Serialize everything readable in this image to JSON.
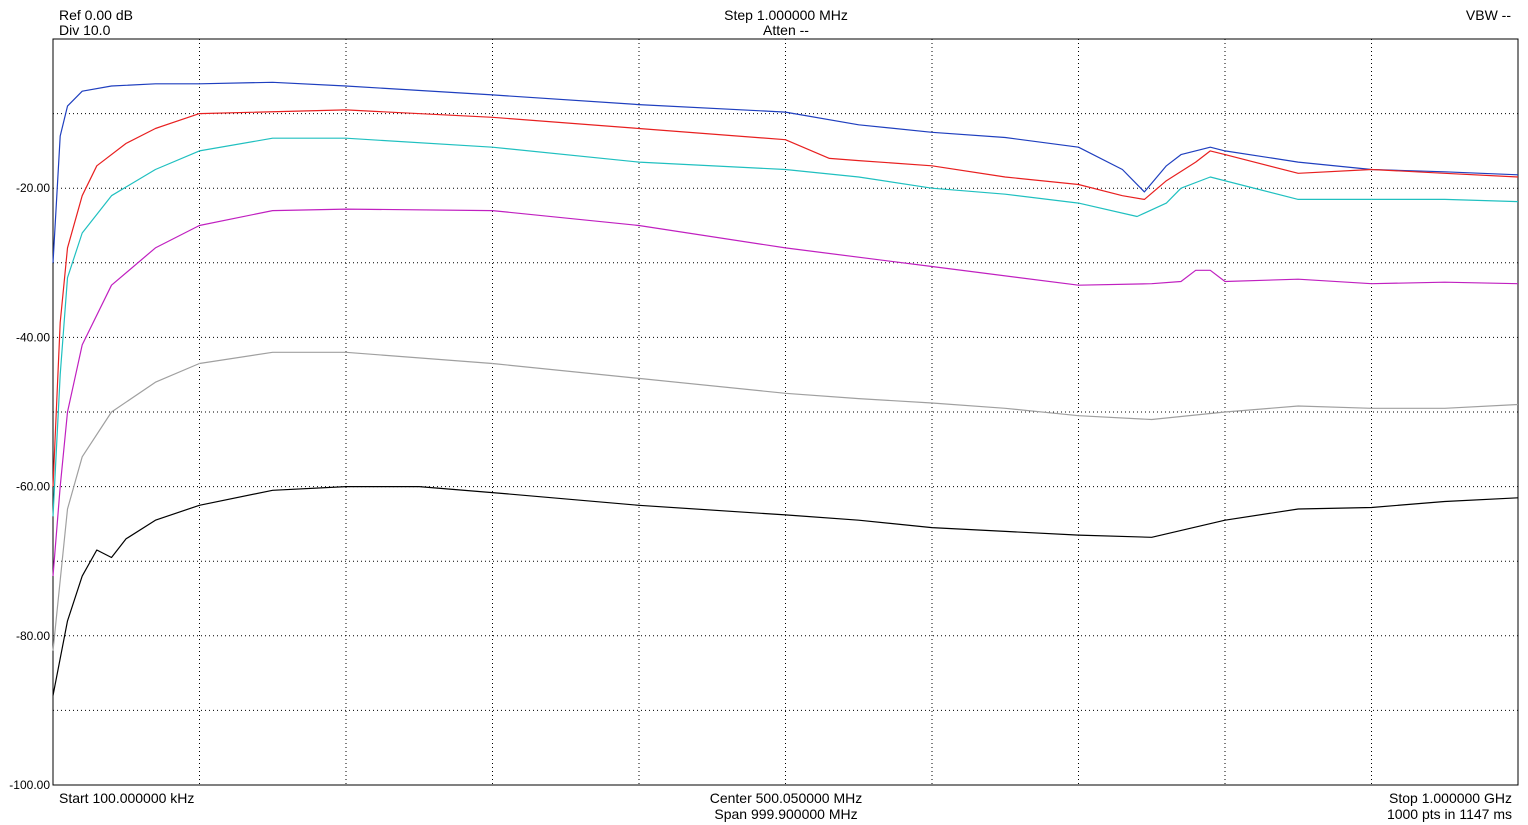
{
  "header": {
    "ref": "Ref 0.00 dB",
    "div": "Div 10.0",
    "step": "Step 1.000000 MHz",
    "atten": "Atten --",
    "vbw": "VBW --"
  },
  "footer": {
    "start": "Start 100.000000 kHz",
    "center": "Center 500.050000 MHz",
    "span": "Span 999.900000 MHz",
    "stop": "Stop 1.000000 GHz",
    "sweep": "1000 pts in 1147 ms"
  },
  "chart_data": {
    "type": "line",
    "xlabel": "",
    "ylabel": "",
    "xlim": [
      0.1,
      1000
    ],
    "ylim": [
      -100,
      0
    ],
    "x_unit": "MHz",
    "grid": true,
    "y_tick_labels": [
      "-20.00",
      "-40.00",
      "-60.00",
      "-80.00",
      "-100.00"
    ],
    "y_tick_values": [
      -20,
      -40,
      -60,
      -80,
      -100
    ],
    "series": [
      {
        "color": "#1f3fbf",
        "x": [
          0.1,
          5,
          10,
          20,
          40,
          70,
          100,
          150,
          200,
          300,
          400,
          500,
          550,
          600,
          650,
          700,
          730,
          745,
          760,
          770,
          790,
          800,
          850,
          900,
          950,
          1000
        ],
        "y": [
          -30,
          -13,
          -9,
          -7,
          -6.3,
          -6,
          -6,
          -5.8,
          -6.3,
          -7.5,
          -8.8,
          -9.8,
          -11.5,
          -12.5,
          -13.2,
          -14.5,
          -17.5,
          -20.5,
          -17,
          -15.5,
          -14.5,
          -15,
          -16.5,
          -17.5,
          -17.8,
          -18.2
        ]
      },
      {
        "color": "#e82020",
        "x": [
          0.1,
          5,
          10,
          20,
          30,
          50,
          70,
          100,
          200,
          300,
          400,
          500,
          530,
          550,
          600,
          650,
          700,
          730,
          745,
          760,
          780,
          790,
          800,
          850,
          900,
          950,
          1000
        ],
        "y": [
          -60,
          -38,
          -28,
          -21,
          -17,
          -14,
          -12,
          -10,
          -9.5,
          -10.5,
          -12,
          -13.5,
          -16,
          -16.3,
          -17,
          -18.5,
          -19.5,
          -21,
          -21.5,
          -19,
          -16.5,
          -15,
          -15.5,
          -18,
          -17.5,
          -18,
          -18.5
        ]
      },
      {
        "color": "#20c0c0",
        "x": [
          0.1,
          5,
          10,
          20,
          40,
          70,
          100,
          150,
          200,
          300,
          400,
          500,
          550,
          600,
          650,
          700,
          740,
          760,
          770,
          790,
          810,
          850,
          900,
          950,
          1000
        ],
        "y": [
          -64,
          -45,
          -32,
          -26,
          -21,
          -17.5,
          -15,
          -13.3,
          -13.3,
          -14.5,
          -16.5,
          -17.5,
          -18.5,
          -20,
          -20.8,
          -22,
          -23.8,
          -22,
          -20,
          -18.5,
          -19.5,
          -21.5,
          -21.5,
          -21.5,
          -21.8
        ]
      },
      {
        "color": "#c020c0",
        "x": [
          0.1,
          5,
          10,
          20,
          40,
          70,
          100,
          150,
          200,
          300,
          400,
          500,
          600,
          700,
          750,
          770,
          780,
          790,
          800,
          850,
          900,
          950,
          1000
        ],
        "y": [
          -72,
          -60,
          -50,
          -41,
          -33,
          -28,
          -25,
          -23,
          -22.8,
          -23,
          -25,
          -28,
          -30.5,
          -33,
          -32.8,
          -32.5,
          -31,
          -31,
          -32.5,
          -32.2,
          -32.8,
          -32.6,
          -32.8
        ]
      },
      {
        "color": "#a0a0a0",
        "x": [
          0.1,
          10,
          20,
          40,
          70,
          100,
          150,
          200,
          300,
          400,
          500,
          550,
          600,
          650,
          700,
          750,
          800,
          850,
          900,
          950,
          1000
        ],
        "y": [
          -82,
          -63,
          -56,
          -50,
          -46,
          -43.5,
          -42,
          -42,
          -43.5,
          -45.5,
          -47.5,
          -48.2,
          -48.8,
          -49.5,
          -50.5,
          -51,
          -50,
          -49.2,
          -49.5,
          -49.5,
          -49
        ]
      },
      {
        "color": "#000000",
        "x": [
          0.1,
          10,
          20,
          30,
          40,
          50,
          70,
          100,
          150,
          200,
          250,
          300,
          400,
          500,
          550,
          600,
          650,
          700,
          750,
          800,
          850,
          900,
          950,
          1000
        ],
        "y": [
          -88,
          -78,
          -72,
          -68.5,
          -69.5,
          -67,
          -64.5,
          -62.5,
          -60.5,
          -60,
          -60,
          -60.8,
          -62.5,
          -63.8,
          -64.5,
          -65.5,
          -66,
          -66.5,
          -66.8,
          -64.5,
          -63,
          -62.8,
          -62,
          -61.5
        ]
      }
    ]
  }
}
